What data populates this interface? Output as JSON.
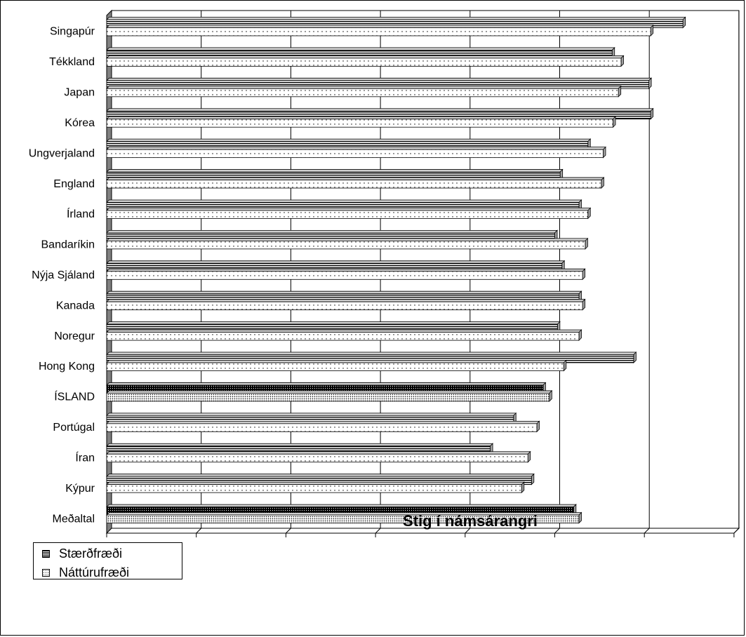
{
  "chart_data": {
    "type": "bar",
    "orientation": "horizontal",
    "xlabel": "Stig í námsárangri",
    "xlim": [
      0,
      700
    ],
    "xticks": [
      0,
      100,
      200,
      300,
      400,
      500,
      600,
      700
    ],
    "grid": true,
    "legend_position": "bottom-left",
    "categories": [
      "Singapúr",
      "Tékkland",
      "Japan",
      "Kórea",
      "Ungverjaland",
      "England",
      "Írland",
      "Bandaríkin",
      "Nýja Sjáland",
      "Kanada",
      "Noregur",
      "Hong Kong",
      "ÍSLAND",
      "Portúgal",
      "Íran",
      "Kýpur",
      "Meðaltal"
    ],
    "highlighted_categories": [
      "ÍSLAND",
      "Meðaltal"
    ],
    "series": [
      {
        "name": "Stærðfræði",
        "values": [
          643,
          564,
          605,
          607,
          537,
          506,
          527,
          500,
          508,
          527,
          503,
          588,
          487,
          454,
          428,
          474,
          521
        ]
      },
      {
        "name": "Náttúrufræði",
        "values": [
          607,
          574,
          571,
          565,
          554,
          552,
          537,
          534,
          531,
          531,
          527,
          510,
          494,
          480,
          470,
          463,
          527
        ]
      }
    ]
  }
}
